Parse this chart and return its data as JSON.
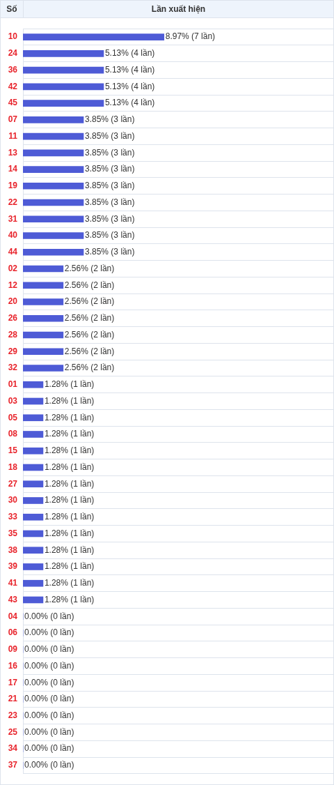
{
  "chart_data": {
    "type": "bar",
    "orientation": "horizontal",
    "ylabel": "Số",
    "xlabel": "Lần xuất hiện",
    "categories": [
      "10",
      "24",
      "36",
      "42",
      "45",
      "07",
      "11",
      "13",
      "14",
      "19",
      "22",
      "31",
      "40",
      "44",
      "02",
      "12",
      "20",
      "26",
      "28",
      "29",
      "32",
      "01",
      "03",
      "05",
      "08",
      "15",
      "18",
      "27",
      "30",
      "33",
      "35",
      "38",
      "39",
      "41",
      "43",
      "04",
      "06",
      "09",
      "16",
      "17",
      "21",
      "23",
      "25",
      "34",
      "37"
    ],
    "values": [
      8.97,
      5.13,
      5.13,
      5.13,
      5.13,
      3.85,
      3.85,
      3.85,
      3.85,
      3.85,
      3.85,
      3.85,
      3.85,
      3.85,
      2.56,
      2.56,
      2.56,
      2.56,
      2.56,
      2.56,
      2.56,
      1.28,
      1.28,
      1.28,
      1.28,
      1.28,
      1.28,
      1.28,
      1.28,
      1.28,
      1.28,
      1.28,
      1.28,
      1.28,
      1.28,
      0,
      0,
      0,
      0,
      0,
      0,
      0,
      0,
      0,
      0
    ],
    "value_labels": [
      "8.97% (7 lần)",
      "5.13% (4 lần)",
      "5.13% (4 lần)",
      "5.13% (4 lần)",
      "5.13% (4 lần)",
      "3.85% (3 lần)",
      "3.85% (3 lần)",
      "3.85% (3 lần)",
      "3.85% (3 lần)",
      "3.85% (3 lần)",
      "3.85% (3 lần)",
      "3.85% (3 lần)",
      "3.85% (3 lần)",
      "3.85% (3 lần)",
      "2.56% (2 lần)",
      "2.56% (2 lần)",
      "2.56% (2 lần)",
      "2.56% (2 lần)",
      "2.56% (2 lần)",
      "2.56% (2 lần)",
      "2.56% (2 lần)",
      "1.28% (1 lần)",
      "1.28% (1 lần)",
      "1.28% (1 lần)",
      "1.28% (1 lần)",
      "1.28% (1 lần)",
      "1.28% (1 lần)",
      "1.28% (1 lần)",
      "1.28% (1 lần)",
      "1.28% (1 lần)",
      "1.28% (1 lần)",
      "1.28% (1 lần)",
      "1.28% (1 lần)",
      "1.28% (1 lần)",
      "1.28% (1 lần)",
      "0.00% (0 lần)",
      "0.00% (0 lần)",
      "0.00% (0 lần)",
      "0.00% (0 lần)",
      "0.00% (0 lần)",
      "0.00% (0 lần)",
      "0.00% (0 lần)",
      "0.00% (0 lần)",
      "0.00% (0 lần)",
      "0.00% (0 lần)"
    ],
    "color": "#4e5bd6",
    "grid": "y",
    "legend": false
  }
}
